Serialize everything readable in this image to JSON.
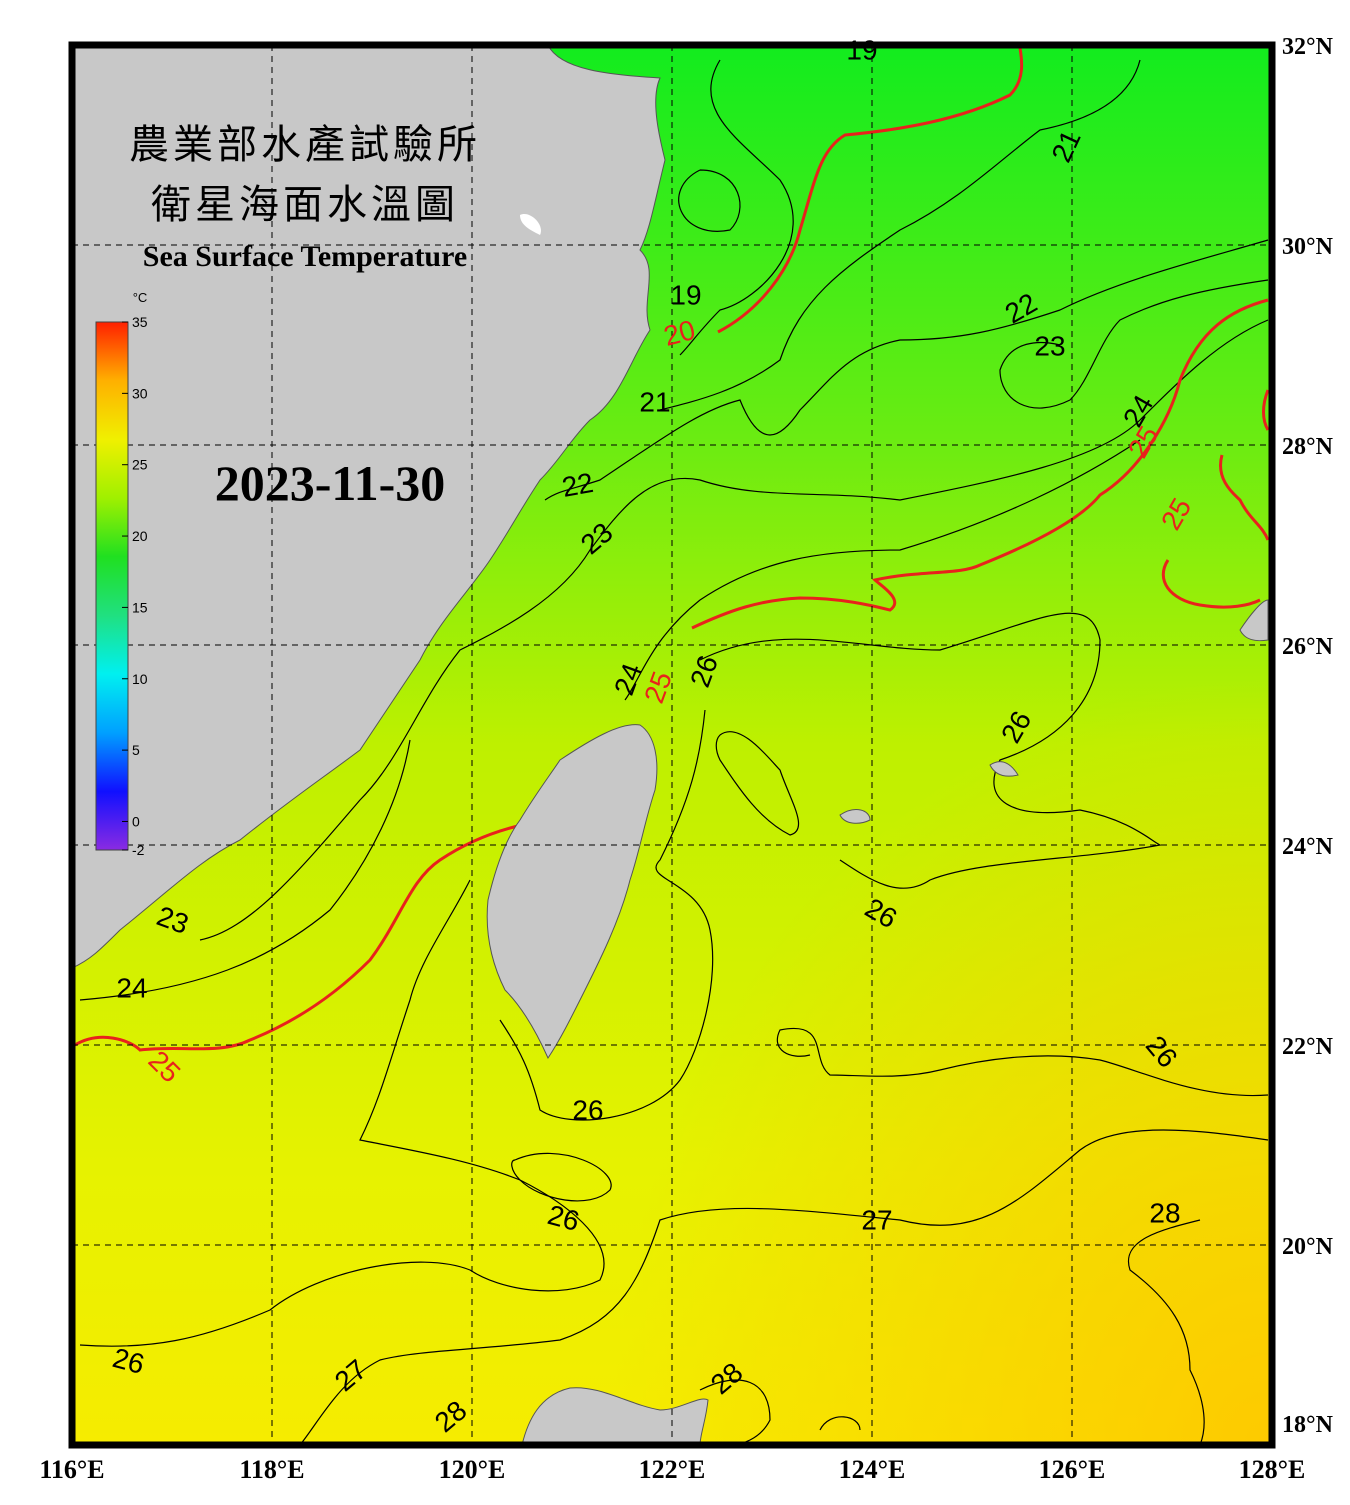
{
  "title_zh": [
    "農業部水產試驗所",
    "衛星海面水溫圖"
  ],
  "title_en": "Sea Surface Temperature",
  "date": "2023-11-30",
  "colorbar": {
    "unit": "°C",
    "range": [
      -2,
      35
    ],
    "ticks": [
      -2,
      0,
      5,
      10,
      15,
      20,
      25,
      30,
      35
    ],
    "colors": [
      "#8a2be2",
      "#1010ff",
      "#00a0ff",
      "#00f0f0",
      "#20e080",
      "#20e020",
      "#a0f000",
      "#f0f000",
      "#ffb000",
      "#ff2000"
    ]
  },
  "map": {
    "lonlim": [
      116,
      128
    ],
    "latlim": [
      18,
      32
    ],
    "grid": true,
    "lon_ticks": [
      {
        "value": 116,
        "label": "116°E"
      },
      {
        "value": 118,
        "label": "118°E"
      },
      {
        "value": 120,
        "label": "120°E"
      },
      {
        "value": 122,
        "label": "122°E"
      },
      {
        "value": 124,
        "label": "124°E"
      },
      {
        "value": 126,
        "label": "126°E"
      },
      {
        "value": 128,
        "label": "128°E"
      }
    ],
    "lat_ticks": [
      {
        "value": 32,
        "label": "32°N"
      },
      {
        "value": 30,
        "label": "30°N"
      },
      {
        "value": 28,
        "label": "28°N"
      },
      {
        "value": 26,
        "label": "26°N"
      },
      {
        "value": 24,
        "label": "24°N"
      },
      {
        "value": 22,
        "label": "22°N"
      },
      {
        "value": 20,
        "label": "20°N"
      },
      {
        "value": 18,
        "label": "18°N"
      }
    ]
  },
  "highlight_levels": [
    20,
    25
  ],
  "highlight_color": "#e8221c",
  "contour_labels": [
    19,
    19,
    20,
    21,
    21,
    22,
    23,
    24,
    25,
    25,
    22,
    23,
    24,
    25,
    26,
    26,
    26,
    23,
    24,
    25,
    26,
    26,
    26,
    27,
    28,
    26,
    27,
    28,
    28
  ]
}
